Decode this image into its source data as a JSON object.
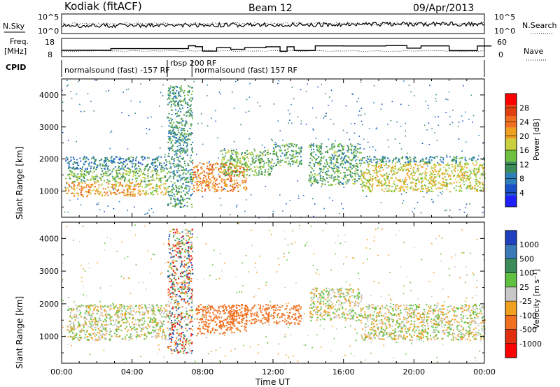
{
  "header": {
    "station": "Kodiak (fitACF)",
    "beam": "Beam 12",
    "date": "09/Apr/2013"
  },
  "summary_panel": {
    "left_labels": {
      "nsky": "N.Sky",
      "freq_line1": "Freq.",
      "freq_line2": "[MHz]",
      "cpid": "CPID"
    },
    "right_labels": {
      "nsearch": "N.Search",
      "nave": "Nave"
    },
    "noise_ticks_left": [
      "10^5",
      "10^0"
    ],
    "noise_ticks_right": [
      "10^5",
      "10^0"
    ],
    "freq_ticks": [
      "18",
      "8"
    ],
    "nave_ticks": [
      "60",
      "0"
    ],
    "cpid_segments": [
      {
        "label": "normalsound (fast) -157 RF",
        "start_hour": 0,
        "end_hour": 6
      },
      {
        "label": "rbsp 200 RF",
        "start_hour": 6,
        "end_hour": 7.4
      },
      {
        "label": "normalsound (fast) 157 RF",
        "start_hour": 7.4,
        "end_hour": 24
      }
    ]
  },
  "chart_data": [
    {
      "type": "heatmap",
      "title": "",
      "xlabel": "",
      "ylabel": "Slant Range [km]",
      "xlim": [
        0,
        24
      ],
      "ylim": [
        180,
        4500
      ],
      "yticks": [
        "1000",
        "2000",
        "3000",
        "4000"
      ],
      "colorbar": {
        "label": "Power [dB]",
        "ticks": [
          "4",
          "8",
          "12",
          "16",
          "20",
          "24",
          "28"
        ],
        "colors": [
          "#2020ff",
          "#1a50c8",
          "#2c7fb8",
          "#3c8c5a",
          "#6fbf40",
          "#c8d040",
          "#f0a020",
          "#f07020",
          "#e04010",
          "#ff0000"
        ]
      },
      "bands": [
        {
          "t0": 0.2,
          "t1": 4.5,
          "r0": 850,
          "r1": 1300,
          "level": 22
        },
        {
          "t0": 0.2,
          "t1": 6.0,
          "r0": 1300,
          "r1": 1700,
          "level": 14
        },
        {
          "t0": 0.2,
          "t1": 6.0,
          "r0": 1700,
          "r1": 2100,
          "level": 8
        },
        {
          "t0": 4.5,
          "t1": 6.0,
          "r0": 900,
          "r1": 1250,
          "level": 18
        },
        {
          "t0": 6.0,
          "t1": 7.4,
          "r0": 500,
          "r1": 4300,
          "level": 10
        },
        {
          "t0": 7.4,
          "t1": 10.5,
          "r0": 1000,
          "r1": 1900,
          "level": 24
        },
        {
          "t0": 9.0,
          "t1": 12.0,
          "r0": 1500,
          "r1": 2300,
          "level": 14
        },
        {
          "t0": 12.0,
          "t1": 13.6,
          "r0": 1800,
          "r1": 2500,
          "level": 12
        },
        {
          "t0": 14.0,
          "t1": 17.0,
          "r0": 1200,
          "r1": 2500,
          "level": 12
        },
        {
          "t0": 17.0,
          "t1": 24.0,
          "r0": 1000,
          "r1": 1900,
          "level": 18
        },
        {
          "t0": 17.0,
          "t1": 24.0,
          "r0": 1900,
          "r1": 2100,
          "level": 10
        }
      ]
    },
    {
      "type": "heatmap",
      "title": "",
      "xlabel": "Time UT",
      "ylabel": "Slant Range [km]",
      "xlim": [
        0,
        24
      ],
      "ylim": [
        180,
        4500
      ],
      "xticks": [
        "00:00",
        "04:00",
        "08:00",
        "12:00",
        "16:00",
        "20:00",
        "00:00"
      ],
      "yticks": [
        "1000",
        "2000",
        "3000",
        "4000"
      ],
      "colorbar": {
        "label": "Velocity [m s⁻¹]",
        "ticks": [
          "1000",
          "500",
          "100",
          "25",
          "-25",
          "-100",
          "-500",
          "-1000"
        ],
        "colors": [
          "#2040c0",
          "#3a7ab8",
          "#3c8c5a",
          "#60c040",
          "#c8c8c8",
          "#f0a020",
          "#f07020",
          "#e03010",
          "#ff0000"
        ]
      },
      "bands": [
        {
          "t0": 0.3,
          "t1": 6.0,
          "r0": 900,
          "r1": 2000,
          "level": 0
        },
        {
          "t0": 6.0,
          "t1": 7.4,
          "r0": 500,
          "r1": 4300,
          "level": 300
        },
        {
          "t0": 7.6,
          "t1": 10.5,
          "r0": 1100,
          "r1": 2000,
          "level": -300
        },
        {
          "t0": 9.5,
          "t1": 13.6,
          "r0": 1400,
          "r1": 2000,
          "level": -200
        },
        {
          "t0": 14.0,
          "t1": 17.0,
          "r0": 1500,
          "r1": 2500,
          "level": 0
        },
        {
          "t0": 17.0,
          "t1": 24.0,
          "r0": 900,
          "r1": 2000,
          "level": 0
        }
      ]
    }
  ]
}
